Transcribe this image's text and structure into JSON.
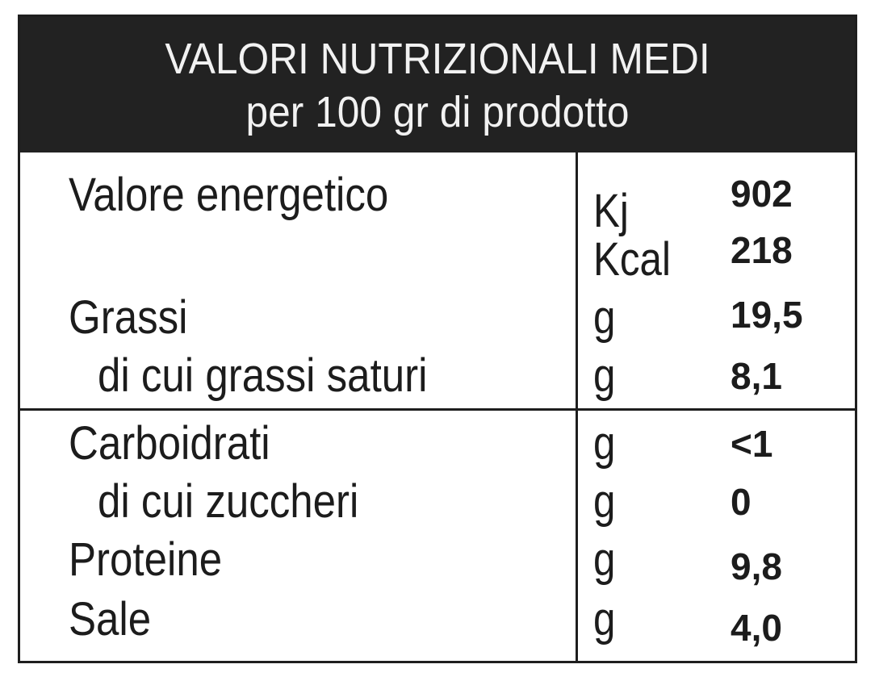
{
  "header": {
    "title": "VALORI NUTRIZIONALI MEDI",
    "subtitle": "per 100 gr di prodotto"
  },
  "rows": [
    {
      "name": "Valore energetico",
      "unit": "Kj",
      "value": "902"
    },
    {
      "name": "",
      "unit": "Kcal",
      "value": "218"
    },
    {
      "name": "Grassi",
      "unit": "g",
      "value": "19,5"
    },
    {
      "name": "di cui grassi saturi",
      "unit": "g",
      "value": "8,1"
    },
    {
      "name": "Carboidrati",
      "unit": "g",
      "value": "<1"
    },
    {
      "name": "di cui zuccheri",
      "unit": "g",
      "value": "0"
    },
    {
      "name": "Proteine",
      "unit": "g",
      "value": "9,8"
    },
    {
      "name": "Sale",
      "unit": "g",
      "value": "4,0"
    }
  ]
}
